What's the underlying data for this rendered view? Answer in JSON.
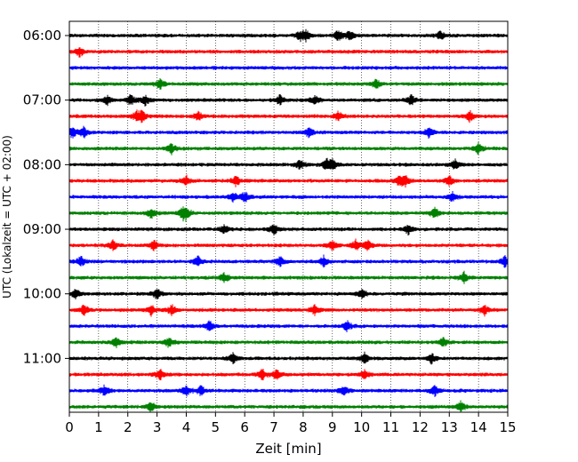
{
  "chart_data": {
    "type": "line",
    "subtype": "helicorder",
    "xlabel": "Zeit  [min]",
    "ylabel": "UTC (Lokalzeit = UTC + 02:00)",
    "xlim": [
      0,
      15
    ],
    "x_ticks": [
      "0",
      "1",
      "2",
      "3",
      "4",
      "5",
      "6",
      "7",
      "8",
      "9",
      "10",
      "11",
      "12",
      "13",
      "14",
      "15"
    ],
    "x_grid": "dotted vertical lines at each minute",
    "y_ticks": [
      "06:00",
      "07:00",
      "08:00",
      "09:00",
      "10:00",
      "11:00"
    ],
    "trace_interval_minutes": 15,
    "traces_per_hour": 4,
    "trace_colors": [
      "#000000",
      "#ff0000",
      "#0000ff",
      "#008000"
    ],
    "rows": [
      {
        "start": "06:00",
        "events_min": [
          7.9,
          8.1,
          9.2,
          9.6,
          12.7
        ]
      },
      {
        "start": "06:15",
        "events_min": [
          0.35
        ]
      },
      {
        "start": "06:30",
        "events_min": []
      },
      {
        "start": "06:45",
        "events_min": [
          3.1,
          10.5
        ]
      },
      {
        "start": "07:00",
        "events_min": [
          1.3,
          2.1,
          2.6,
          7.2,
          8.4,
          11.7
        ]
      },
      {
        "start": "07:15",
        "events_min": [
          2.3,
          2.5,
          4.4,
          9.2,
          13.7
        ]
      },
      {
        "start": "07:30",
        "events_min": [
          0.1,
          0.5,
          8.2,
          12.3
        ]
      },
      {
        "start": "07:45",
        "events_min": [
          3.5,
          14.0
        ]
      },
      {
        "start": "08:00",
        "events_min": [
          7.9,
          8.8,
          9.0,
          13.2
        ]
      },
      {
        "start": "08:15",
        "events_min": [
          4.0,
          5.7,
          11.3,
          11.5,
          13.0
        ]
      },
      {
        "start": "08:30",
        "events_min": [
          5.6,
          6.0,
          13.1
        ]
      },
      {
        "start": "08:45",
        "events_min": [
          2.8,
          3.9,
          4.0,
          12.5
        ]
      },
      {
        "start": "09:00",
        "events_min": [
          5.3,
          7.0,
          11.6
        ]
      },
      {
        "start": "09:15",
        "events_min": [
          1.5,
          2.9,
          9.0,
          9.8,
          10.2
        ]
      },
      {
        "start": "09:30",
        "events_min": [
          0.4,
          4.4,
          7.2,
          8.7,
          14.9
        ]
      },
      {
        "start": "09:45",
        "events_min": [
          5.3,
          13.5
        ]
      },
      {
        "start": "10:00",
        "events_min": [
          0.2,
          3.0,
          10.0
        ]
      },
      {
        "start": "10:15",
        "events_min": [
          0.5,
          2.8,
          3.5,
          8.4,
          14.2
        ]
      },
      {
        "start": "10:30",
        "events_min": [
          4.8,
          9.5
        ]
      },
      {
        "start": "10:45",
        "events_min": [
          1.6,
          3.4,
          12.8
        ]
      },
      {
        "start": "11:00",
        "events_min": [
          5.6,
          10.1,
          12.4
        ]
      },
      {
        "start": "11:15",
        "events_min": [
          3.1,
          6.6,
          7.1,
          10.1
        ]
      },
      {
        "start": "11:30",
        "events_min": [
          1.2,
          4.0,
          4.5,
          9.4,
          12.5
        ]
      },
      {
        "start": "11:45",
        "events_min": [
          2.8,
          13.4
        ]
      }
    ]
  }
}
